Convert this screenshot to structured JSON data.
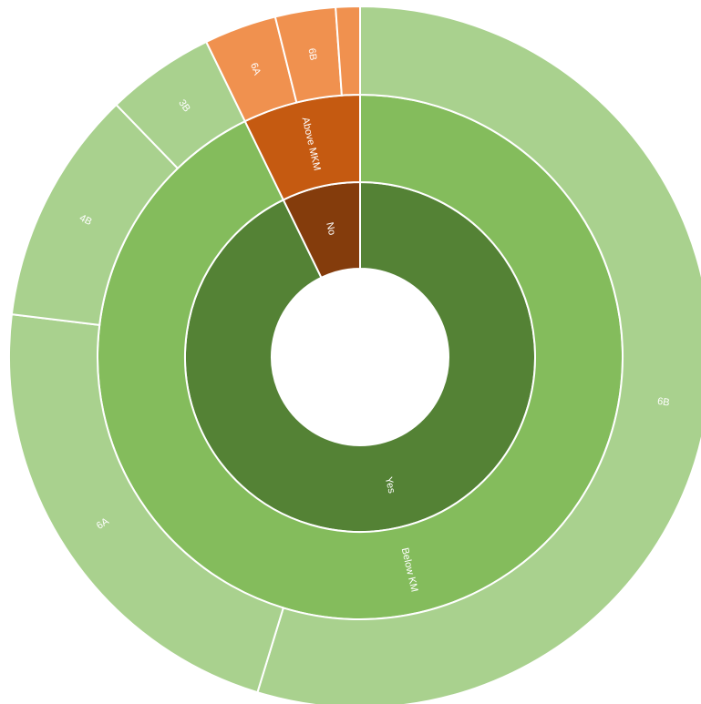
{
  "chart_data": {
    "type": "sunburst",
    "children": [
      {
        "name": "Yes",
        "color": "#548235",
        "children": [
          {
            "name": "Below KM",
            "color": "#84bc5c",
            "children": [
              {
                "name": "6B",
                "color": "#a9d18e",
                "value": 197
              },
              {
                "name": "6A",
                "color": "#a9d18e",
                "value": 80
              },
              {
                "name": "4B",
                "color": "#a9d18e",
                "value": 39
              },
              {
                "name": "3B",
                "color": "#a9d18e",
                "value": 18
              }
            ]
          }
        ]
      },
      {
        "name": "No",
        "color": "#843c0c",
        "children": [
          {
            "name": "Above MKM",
            "color": "#c55a11",
            "children": [
              {
                "name": "6A",
                "color": "#f0914f",
                "value": 12
              },
              {
                "name": "6B",
                "color": "#f0914f",
                "value": 10
              },
              {
                "name": null,
                "color": "#f0914f",
                "value": 4
              }
            ]
          }
        ]
      }
    ]
  }
}
